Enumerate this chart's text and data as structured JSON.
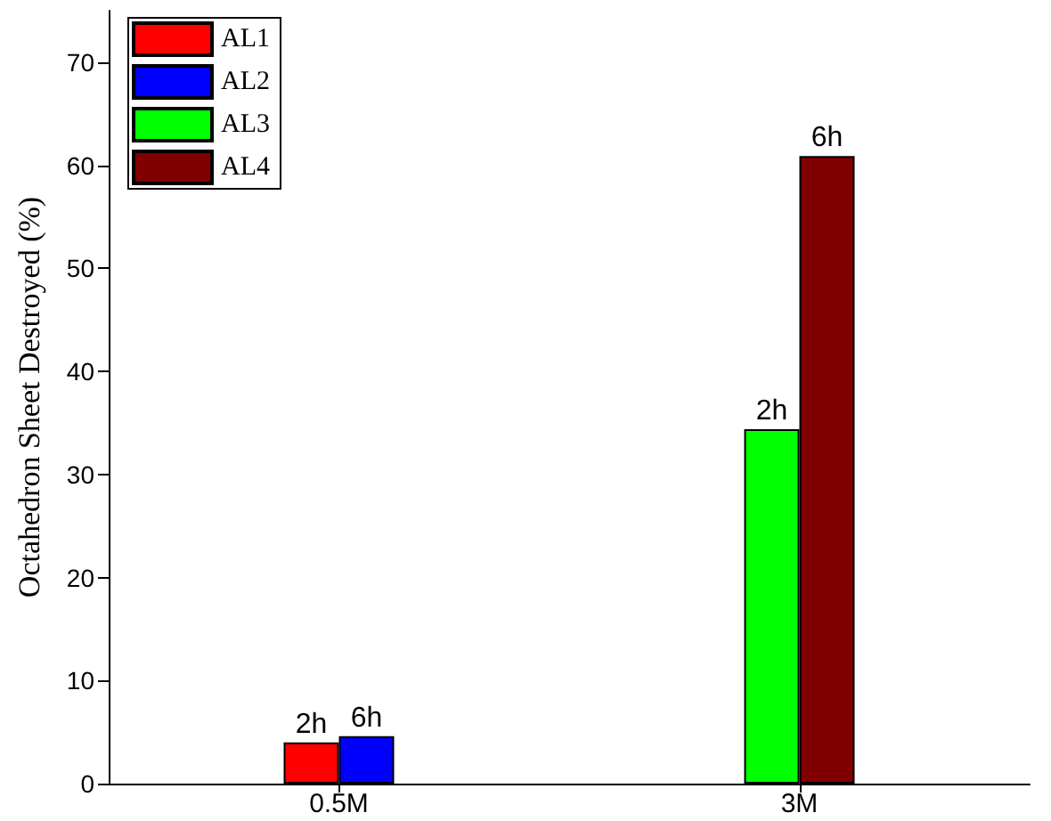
{
  "chart_data": {
    "type": "bar",
    "ylabel": "Octahedron Sheet Destroyed (%)",
    "categories": [
      "0.5M",
      "3M"
    ],
    "series": [
      {
        "name": "AL1",
        "color": "#ff0000",
        "values": [
          4.0,
          null
        ]
      },
      {
        "name": "AL2",
        "color": "#0000ff",
        "values": [
          4.6,
          null
        ]
      },
      {
        "name": "AL3",
        "color": "#00ff00",
        "values": [
          null,
          34.4
        ]
      },
      {
        "name": "AL4",
        "color": "#800000",
        "values": [
          null,
          60.9
        ]
      }
    ],
    "annotations": [
      {
        "text": "2h",
        "x": "0.5M",
        "y": 4.0
      },
      {
        "text": "6h",
        "x": "0.5M",
        "y": 4.6
      },
      {
        "text": "2h",
        "x": "3M",
        "y": 34.4
      },
      {
        "text": "6h",
        "x": "3M",
        "y": 60.9
      }
    ],
    "ylim": [
      0,
      75
    ],
    "yticks": [
      0,
      10,
      20,
      30,
      40,
      50,
      60,
      70
    ],
    "grid": false,
    "legend": "top left"
  }
}
